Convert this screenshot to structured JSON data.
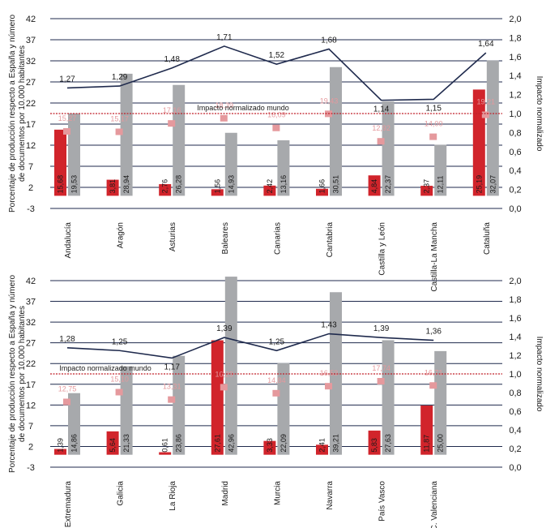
{
  "chart_data": [
    {
      "type": "bar",
      "categories": [
        "Andalucía",
        "Aragón",
        "Asturias",
        "Baleares",
        "Canarias",
        "Cantabria",
        "Castilla y León",
        "Castilla-La Mancha",
        "Cataluña"
      ],
      "series": [
        {
          "values": [
            15.68,
            3.81,
            2.76,
            1.56,
            2.42,
            1.66,
            4.84,
            2.37,
            25.19
          ],
          "labels": [
            "15,68",
            "3,81",
            "2,76",
            "1,56",
            "2,42",
            "1,66",
            "4,84",
            "2,37",
            "25,19"
          ],
          "color": "#d1242b",
          "axis": "left"
        },
        {
          "values": [
            19.53,
            28.94,
            26.28,
            14.93,
            13.16,
            30.51,
            22.37,
            12.11,
            32.07
          ],
          "labels": [
            "19,53",
            "28,94",
            "26,28",
            "14,93",
            "13,16",
            "30,51",
            "22,37",
            "12,11",
            "32,07"
          ],
          "color": "#a7a9ac",
          "axis": "left"
        },
        {
          "values": [
            15.27,
            15.17,
            17.16,
            18.39,
            16.09,
            19.43,
            12.92,
            14.0,
            19.21
          ],
          "labels": [
            "15,27",
            "15,17",
            "17,16",
            "18,39",
            "16,09",
            "19,43",
            "12,92",
            "14,00",
            "19,21"
          ],
          "color": "#e5999d",
          "type": "marker",
          "axis": "left"
        },
        {
          "values": [
            1.27,
            1.29,
            1.48,
            1.71,
            1.52,
            1.68,
            1.14,
            1.15,
            1.64
          ],
          "labels": [
            "1,27",
            "1,29",
            "1,48",
            "1,71",
            "1,52",
            "1,68",
            "1,14",
            "1,15",
            "1,64"
          ],
          "color": "#1f2a4d",
          "type": "line",
          "axis": "right"
        }
      ],
      "reference_line": {
        "value": 1.0,
        "label": "Impacto normalizado mundo",
        "axis": "right"
      },
      "ylabel": "Porcentaje de producción respecto a España y número de documentos por 10.000 habitantes",
      "y2label": "Impacto normalizado",
      "ylim": [
        -3,
        42
      ],
      "yticks": [
        "-3",
        "2",
        "7",
        "12",
        "17",
        "22",
        "27",
        "32",
        "37",
        "42"
      ],
      "y2lim": [
        0,
        2
      ],
      "y2ticks": [
        "0,0",
        "0,2",
        "0,4",
        "0,6",
        "0,8",
        "1,0",
        "1,2",
        "1,4",
        "1,6",
        "1,8",
        "2,0"
      ],
      "grid": true
    },
    {
      "type": "bar",
      "categories": [
        "Extremadura",
        "Galicia",
        "La Rioja",
        "Madrid",
        "Murcia",
        "Navarra",
        "País Vasco",
        "C. Valenciana"
      ],
      "series": [
        {
          "values": [
            1.39,
            5.64,
            0.61,
            27.61,
            3.33,
            2.41,
            5.83,
            11.87
          ],
          "labels": [
            "1,39",
            "5,64",
            "0,61",
            "27,61",
            "3,33",
            "2,41",
            "5,83",
            "11,87"
          ],
          "color": "#d1242b",
          "axis": "left"
        },
        {
          "values": [
            14.86,
            21.33,
            23.86,
            42.96,
            22.09,
            39.21,
            27.63,
            25.0
          ],
          "labels": [
            "14,86",
            "21,33",
            "23,86",
            "42,96",
            "22,09",
            "39,21",
            "27,63",
            "25,00"
          ],
          "color": "#a7a9ac",
          "axis": "left"
        },
        {
          "values": [
            12.75,
            15.1,
            13.31,
            16.29,
            14.84,
            16.53,
            17.74,
            16.71
          ],
          "labels": [
            "12,75",
            "15,10",
            "13,31",
            "16,29",
            "14,84",
            "16,53",
            "17,74",
            "16,71"
          ],
          "color": "#e5999d",
          "type": "marker",
          "axis": "left"
        },
        {
          "values": [
            1.28,
            1.25,
            1.17,
            1.39,
            1.25,
            1.43,
            1.39,
            1.36
          ],
          "labels": [
            "1,28",
            "1,25",
            "1,17",
            "1,39",
            "1,25",
            "1,43",
            "1,39",
            "1,36"
          ],
          "color": "#1f2a4d",
          "type": "line",
          "axis": "right"
        }
      ],
      "reference_line": {
        "value": 1.0,
        "label": "Impacto normalizado mundo",
        "axis": "right"
      },
      "ylabel": "Porcentaje de producción respecto a España y número de documentos por 10.000 habitantes",
      "y2label": "Impacto normalizado",
      "ylim": [
        -3,
        42
      ],
      "yticks": [
        "-3",
        "2",
        "7",
        "12",
        "17",
        "22",
        "27",
        "32",
        "37",
        "42"
      ],
      "y2lim": [
        0,
        2
      ],
      "y2ticks": [
        "0,0",
        "0,2",
        "0,4",
        "0,6",
        "0,8",
        "1,0",
        "1,2",
        "1,4",
        "1,6",
        "1,8",
        "2,0"
      ],
      "grid": true
    }
  ]
}
